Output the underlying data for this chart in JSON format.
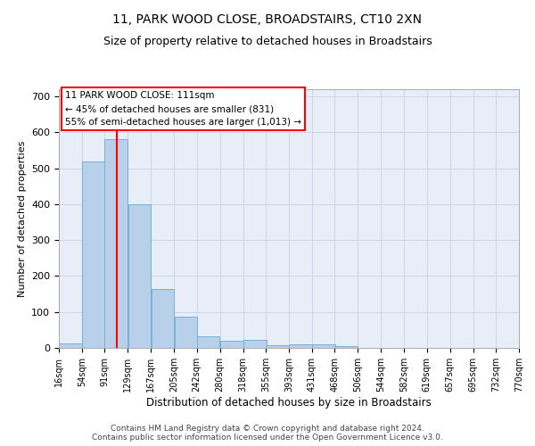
{
  "title1": "11, PARK WOOD CLOSE, BROADSTAIRS, CT10 2XN",
  "title2": "Size of property relative to detached houses in Broadstairs",
  "xlabel": "Distribution of detached houses by size in Broadstairs",
  "ylabel": "Number of detached properties",
  "footer1": "Contains HM Land Registry data © Crown copyright and database right 2024.",
  "footer2": "Contains public sector information licensed under the Open Government Licence v3.0.",
  "annotation_line1": "11 PARK WOOD CLOSE: 111sqm",
  "annotation_line2": "← 45% of detached houses are smaller (831)",
  "annotation_line3": "55% of semi-detached houses are larger (1,013) →",
  "bar_left_edges": [
    16,
    54,
    91,
    129,
    167,
    205,
    242,
    280,
    318,
    355,
    393,
    431,
    468,
    506,
    544,
    582,
    619,
    657,
    695,
    732
  ],
  "bar_heights": [
    12,
    520,
    580,
    400,
    165,
    88,
    32,
    20,
    22,
    8,
    10,
    10,
    5,
    0,
    0,
    0,
    0,
    0,
    0,
    0
  ],
  "bin_width": 38,
  "bar_color": "#b8d0ea",
  "bar_edge_color": "#7aafd4",
  "red_line_x": 111,
  "ylim": [
    0,
    720
  ],
  "yticks": [
    0,
    100,
    200,
    300,
    400,
    500,
    600,
    700
  ],
  "xlim": [
    16,
    770
  ],
  "xtick_labels": [
    "16sqm",
    "54sqm",
    "91sqm",
    "129sqm",
    "167sqm",
    "205sqm",
    "242sqm",
    "280sqm",
    "318sqm",
    "355sqm",
    "393sqm",
    "431sqm",
    "468sqm",
    "506sqm",
    "544sqm",
    "582sqm",
    "619sqm",
    "657sqm",
    "695sqm",
    "732sqm",
    "770sqm"
  ],
  "xtick_positions": [
    16,
    54,
    91,
    129,
    167,
    205,
    242,
    280,
    318,
    355,
    393,
    431,
    468,
    506,
    544,
    582,
    619,
    657,
    695,
    732,
    770
  ],
  "grid_color": "#ccd6e8",
  "plot_bg_color": "#e8eef8",
  "title_fontsize": 10,
  "subtitle_fontsize": 9,
  "footer_fontsize": 6.5
}
